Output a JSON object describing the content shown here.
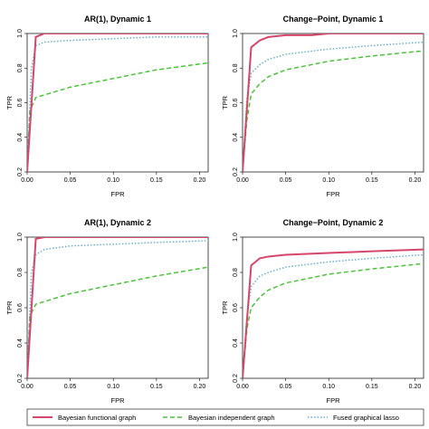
{
  "chart_data": [
    {
      "type": "line",
      "title": "AR(1), Dynamic 1",
      "xlabel": "FPR",
      "ylabel": "TPR",
      "xlim": [
        0,
        0.21
      ],
      "ylim": [
        0.2,
        1.0
      ],
      "xticks": [
        "0.00",
        "0.05",
        "0.10",
        "0.15",
        "0.20"
      ],
      "yticks": [
        "0.2",
        "0.4",
        "0.6",
        "0.8",
        "1.0"
      ],
      "series": [
        {
          "name": "Bayesian functional graph",
          "x": [
            0,
            0.01,
            0.02,
            0.05,
            0.1,
            0.15,
            0.21
          ],
          "y": [
            0.2,
            0.98,
            1.0,
            1.0,
            1.0,
            1.0,
            1.0
          ]
        },
        {
          "name": "Bayesian independent graph",
          "x": [
            0,
            0.003,
            0.01,
            0.03,
            0.05,
            0.1,
            0.15,
            0.21
          ],
          "y": [
            0.2,
            0.55,
            0.63,
            0.66,
            0.69,
            0.74,
            0.79,
            0.83
          ]
        },
        {
          "name": "Fused graphical lasso",
          "x": [
            0,
            0.005,
            0.01,
            0.02,
            0.05,
            0.1,
            0.15,
            0.21
          ],
          "y": [
            0.2,
            0.8,
            0.93,
            0.95,
            0.96,
            0.97,
            0.98,
            0.98
          ]
        }
      ]
    },
    {
      "type": "line",
      "title": "Change−Point, Dynamic 1",
      "xlabel": "FPR",
      "ylabel": "TPR",
      "xlim": [
        0,
        0.21
      ],
      "ylim": [
        0.2,
        1.0
      ],
      "xticks": [
        "0.00",
        "0.05",
        "0.10",
        "0.15",
        "0.20"
      ],
      "yticks": [
        "0.2",
        "0.4",
        "0.6",
        "0.8",
        "1.0"
      ],
      "series": [
        {
          "name": "Bayesian functional graph",
          "x": [
            0,
            0.01,
            0.02,
            0.03,
            0.05,
            0.08,
            0.1,
            0.15,
            0.21
          ],
          "y": [
            0.2,
            0.92,
            0.96,
            0.98,
            0.99,
            0.99,
            1.0,
            1.0,
            1.0
          ]
        },
        {
          "name": "Bayesian independent graph",
          "x": [
            0,
            0.005,
            0.01,
            0.02,
            0.03,
            0.05,
            0.1,
            0.15,
            0.21
          ],
          "y": [
            0.2,
            0.5,
            0.65,
            0.71,
            0.75,
            0.79,
            0.84,
            0.87,
            0.9
          ]
        },
        {
          "name": "Fused graphical lasso",
          "x": [
            0,
            0.005,
            0.01,
            0.02,
            0.03,
            0.05,
            0.1,
            0.15,
            0.21
          ],
          "y": [
            0.2,
            0.62,
            0.77,
            0.82,
            0.85,
            0.88,
            0.91,
            0.93,
            0.95
          ]
        }
      ]
    },
    {
      "type": "line",
      "title": "AR(1), Dynamic 2",
      "xlabel": "FPR",
      "ylabel": "TPR",
      "xlim": [
        0,
        0.21
      ],
      "ylim": [
        0.2,
        1.0
      ],
      "xticks": [
        "0.00",
        "0.05",
        "0.10",
        "0.15",
        "0.20"
      ],
      "yticks": [
        "0.2",
        "0.4",
        "0.6",
        "0.8",
        "1.0"
      ],
      "series": [
        {
          "name": "Bayesian functional graph",
          "x": [
            0,
            0.01,
            0.02,
            0.05,
            0.1,
            0.15,
            0.21
          ],
          "y": [
            0.2,
            0.99,
            1.0,
            1.0,
            1.0,
            1.0,
            1.0
          ]
        },
        {
          "name": "Bayesian independent graph",
          "x": [
            0,
            0.003,
            0.01,
            0.03,
            0.05,
            0.1,
            0.15,
            0.21
          ],
          "y": [
            0.2,
            0.55,
            0.62,
            0.65,
            0.68,
            0.73,
            0.78,
            0.83
          ]
        },
        {
          "name": "Fused graphical lasso",
          "x": [
            0,
            0.005,
            0.01,
            0.02,
            0.05,
            0.1,
            0.15,
            0.21
          ],
          "y": [
            0.2,
            0.8,
            0.9,
            0.93,
            0.95,
            0.96,
            0.97,
            0.98
          ]
        }
      ]
    },
    {
      "type": "line",
      "title": "Change−Point, Dynamic 2",
      "xlabel": "FPR",
      "ylabel": "TPR",
      "xlim": [
        0,
        0.21
      ],
      "ylim": [
        0.2,
        1.0
      ],
      "xticks": [
        "0.00",
        "0.05",
        "0.10",
        "0.15",
        "0.20"
      ],
      "yticks": [
        "0.2",
        "0.4",
        "0.6",
        "0.8",
        "1.0"
      ],
      "series": [
        {
          "name": "Bayesian functional graph",
          "x": [
            0,
            0.01,
            0.02,
            0.03,
            0.05,
            0.1,
            0.15,
            0.21
          ],
          "y": [
            0.2,
            0.84,
            0.88,
            0.89,
            0.9,
            0.91,
            0.92,
            0.93
          ]
        },
        {
          "name": "Bayesian independent graph",
          "x": [
            0,
            0.005,
            0.01,
            0.02,
            0.03,
            0.05,
            0.1,
            0.15,
            0.21
          ],
          "y": [
            0.2,
            0.48,
            0.6,
            0.66,
            0.7,
            0.74,
            0.79,
            0.82,
            0.85
          ]
        },
        {
          "name": "Fused graphical lasso",
          "x": [
            0,
            0.005,
            0.01,
            0.02,
            0.03,
            0.05,
            0.1,
            0.15,
            0.21
          ],
          "y": [
            0.2,
            0.55,
            0.72,
            0.78,
            0.8,
            0.83,
            0.86,
            0.88,
            0.9
          ]
        }
      ]
    }
  ],
  "legend": {
    "items": [
      {
        "label": "Bayesian functional graph",
        "color": "#d6456a",
        "style": "solid"
      },
      {
        "label": "Bayesian independent graph",
        "color": "#4cc43a",
        "style": "dashed"
      },
      {
        "label": "Fused graphical lasso",
        "color": "#6aaed6",
        "style": "dotted"
      }
    ]
  },
  "series_colors": [
    "#d6456a",
    "#4cc43a",
    "#6aaed6"
  ]
}
